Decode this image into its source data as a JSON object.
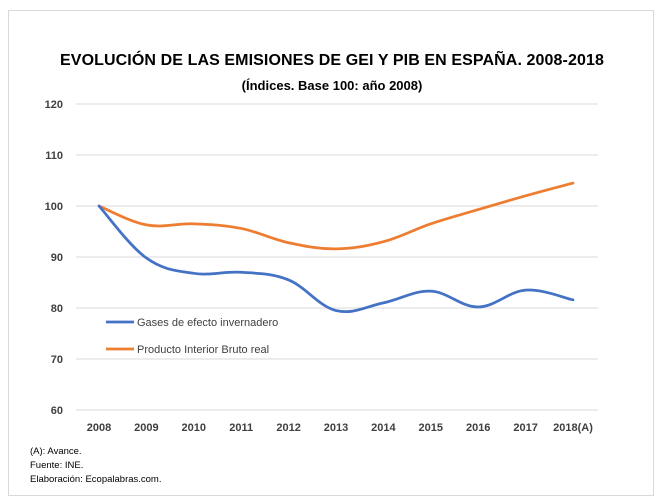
{
  "chart_data": {
    "type": "line",
    "title": "EVOLUCIÓN DE LAS EMISIONES DE GEI Y PIB EN ESPAÑA. 2008-2018",
    "subtitle": "(Índices. Base 100: año 2008)",
    "categories": [
      "2008",
      "2009",
      "2010",
      "2011",
      "2012",
      "2013",
      "2014",
      "2015",
      "2016",
      "2017",
      "2018(A)"
    ],
    "series": [
      {
        "name": "Gases de efecto invernadero",
        "color": "#4472c4",
        "values": [
          100,
          89.8,
          86.8,
          87.0,
          85.5,
          79.5,
          81.0,
          83.3,
          80.2,
          83.5,
          81.6
        ]
      },
      {
        "name": "Producto Interior Bruto real",
        "color": "#ed7d31",
        "values": [
          100,
          96.3,
          96.5,
          95.6,
          92.8,
          91.6,
          93.0,
          96.5,
          99.3,
          102.0,
          104.5
        ]
      }
    ],
    "ylim": [
      60,
      120
    ],
    "yticks": [
      60,
      70,
      80,
      90,
      100,
      110,
      120
    ],
    "grid": true,
    "legend_position": "inside-left"
  },
  "notes": {
    "advance": "(A): Avance.",
    "source": "Fuente: INE.",
    "author": "Elaboración: Ecopalabras.com."
  }
}
